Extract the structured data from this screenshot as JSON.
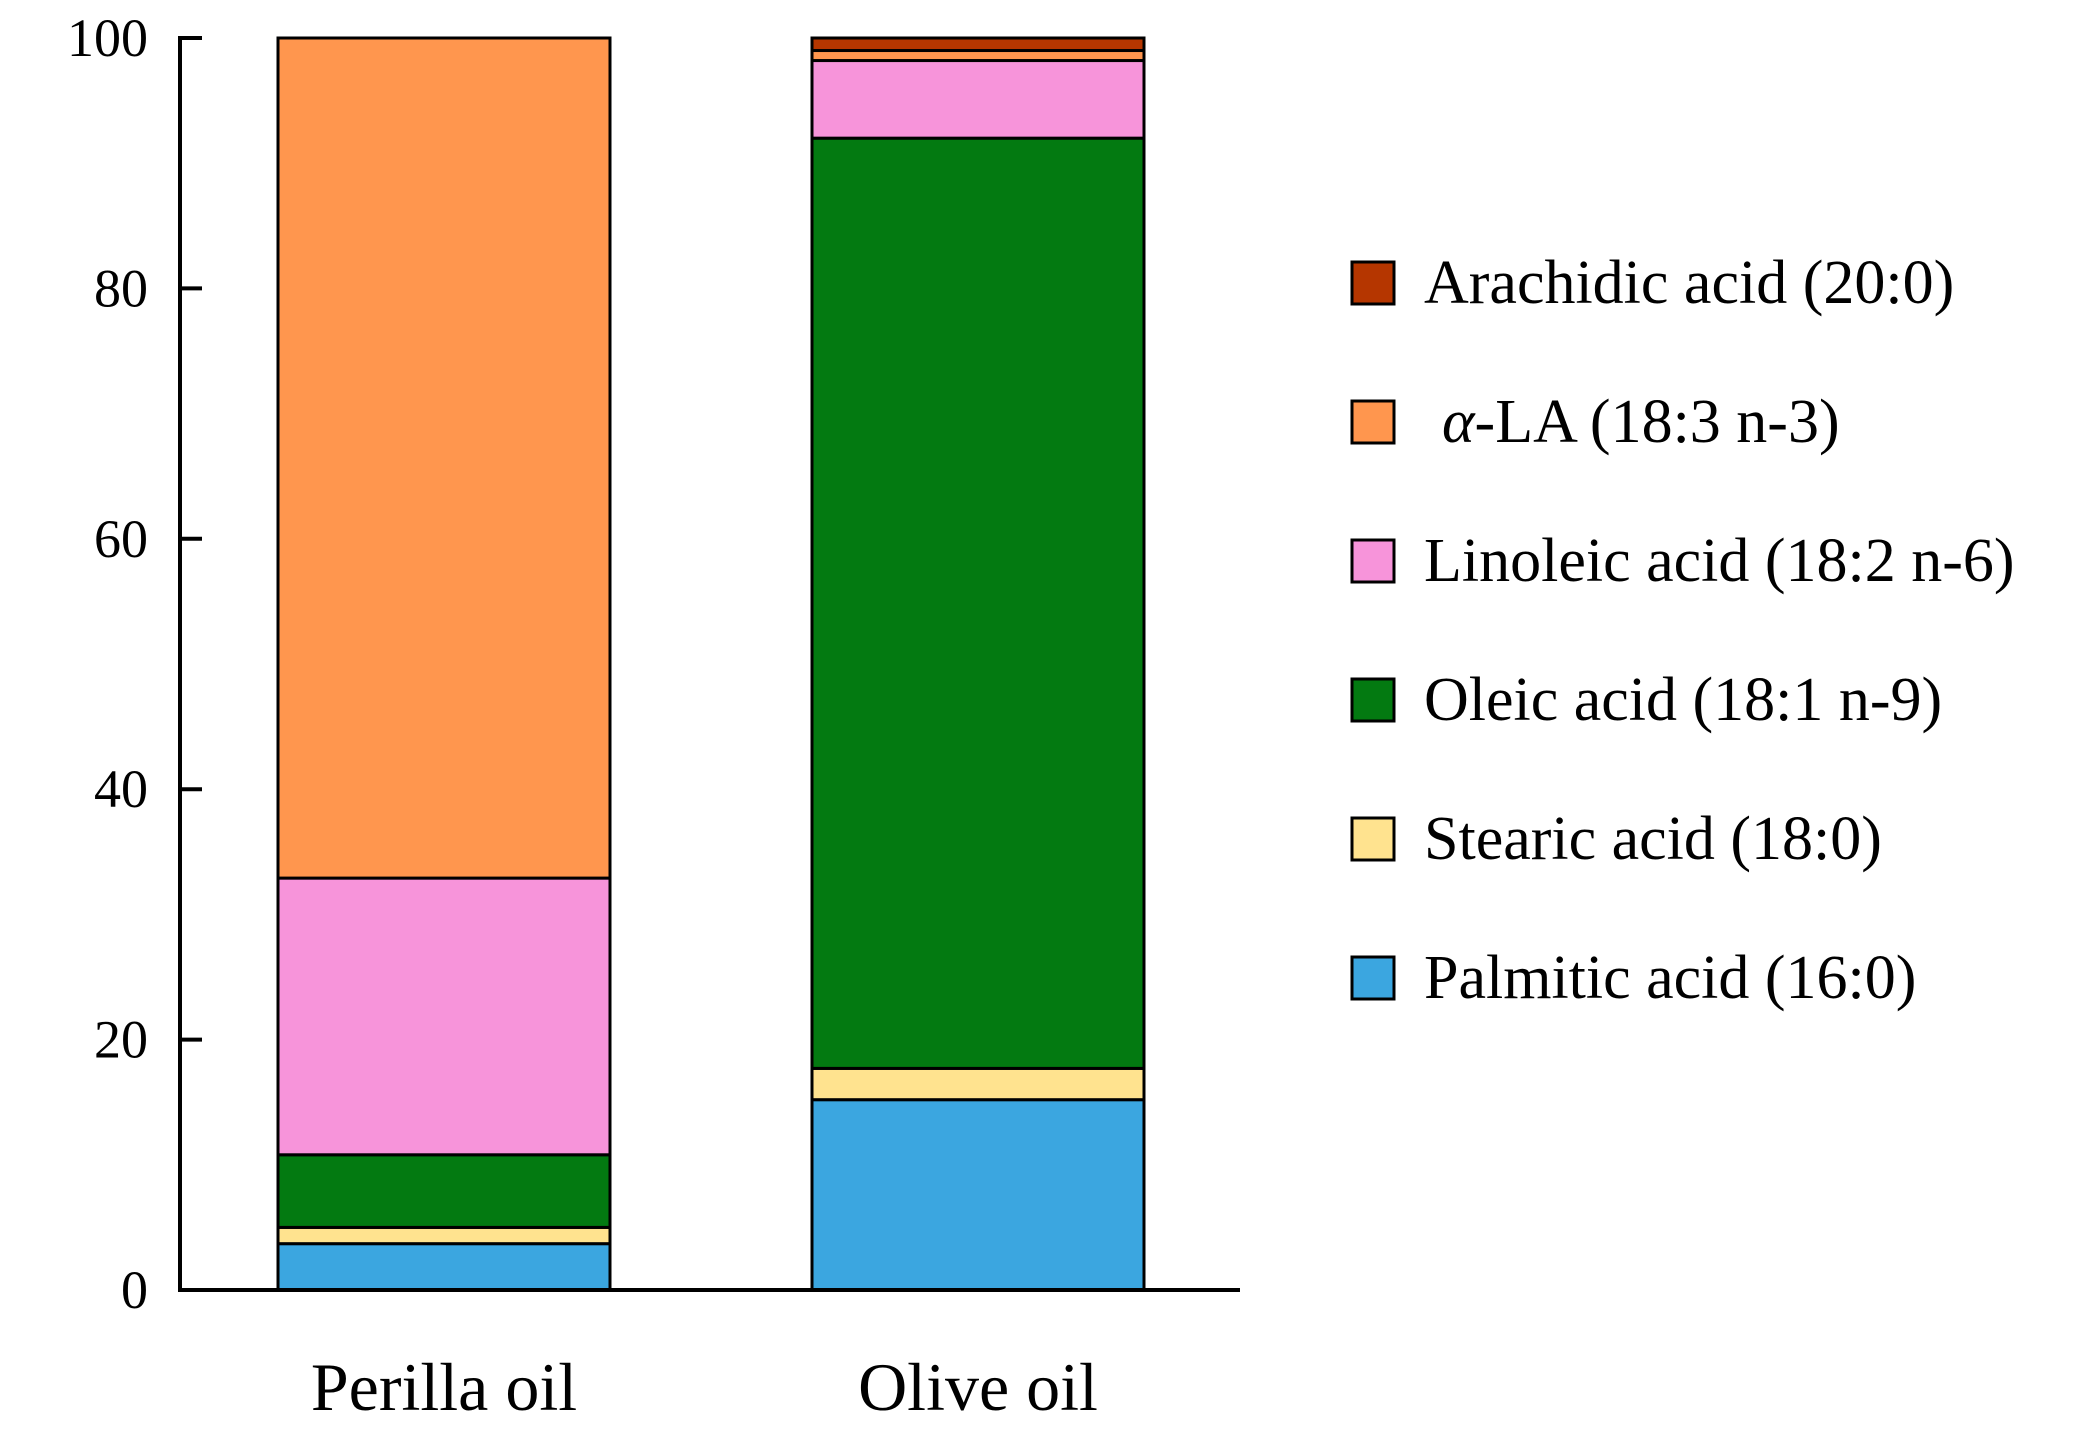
{
  "chart_data": {
    "type": "bar",
    "stacked": true,
    "categories": [
      "Perilla oil",
      "Olive oil"
    ],
    "ylim": [
      0,
      100
    ],
    "yticks": [
      "0",
      "20",
      "40",
      "60",
      "80",
      "100"
    ],
    "xlabel": "",
    "ylabel": "",
    "title": "",
    "legend_position": "right",
    "series": [
      {
        "name": "Palmitic acid (16:0)",
        "color": "#3BA6E0",
        "values": [
          3.7,
          15.2
        ]
      },
      {
        "name": "Stearic acid (18:0)",
        "color": "#FFE38F",
        "values": [
          1.3,
          2.5
        ]
      },
      {
        "name": "Oleic acid (18:1 n-9)",
        "color": "#037A11",
        "values": [
          5.8,
          74.3
        ]
      },
      {
        "name": "Linoleic acid (18:2 n-6)",
        "color": "#F794DA",
        "values": [
          22.1,
          6.2
        ]
      },
      {
        "name": "α-LA (18:3 n-3)",
        "color": "#FF964E",
        "values": [
          67.1,
          0.8
        ]
      },
      {
        "name": "Arachidic acid (20:0)",
        "color": "#B53600",
        "values": [
          0.0,
          1.0
        ]
      }
    ]
  }
}
